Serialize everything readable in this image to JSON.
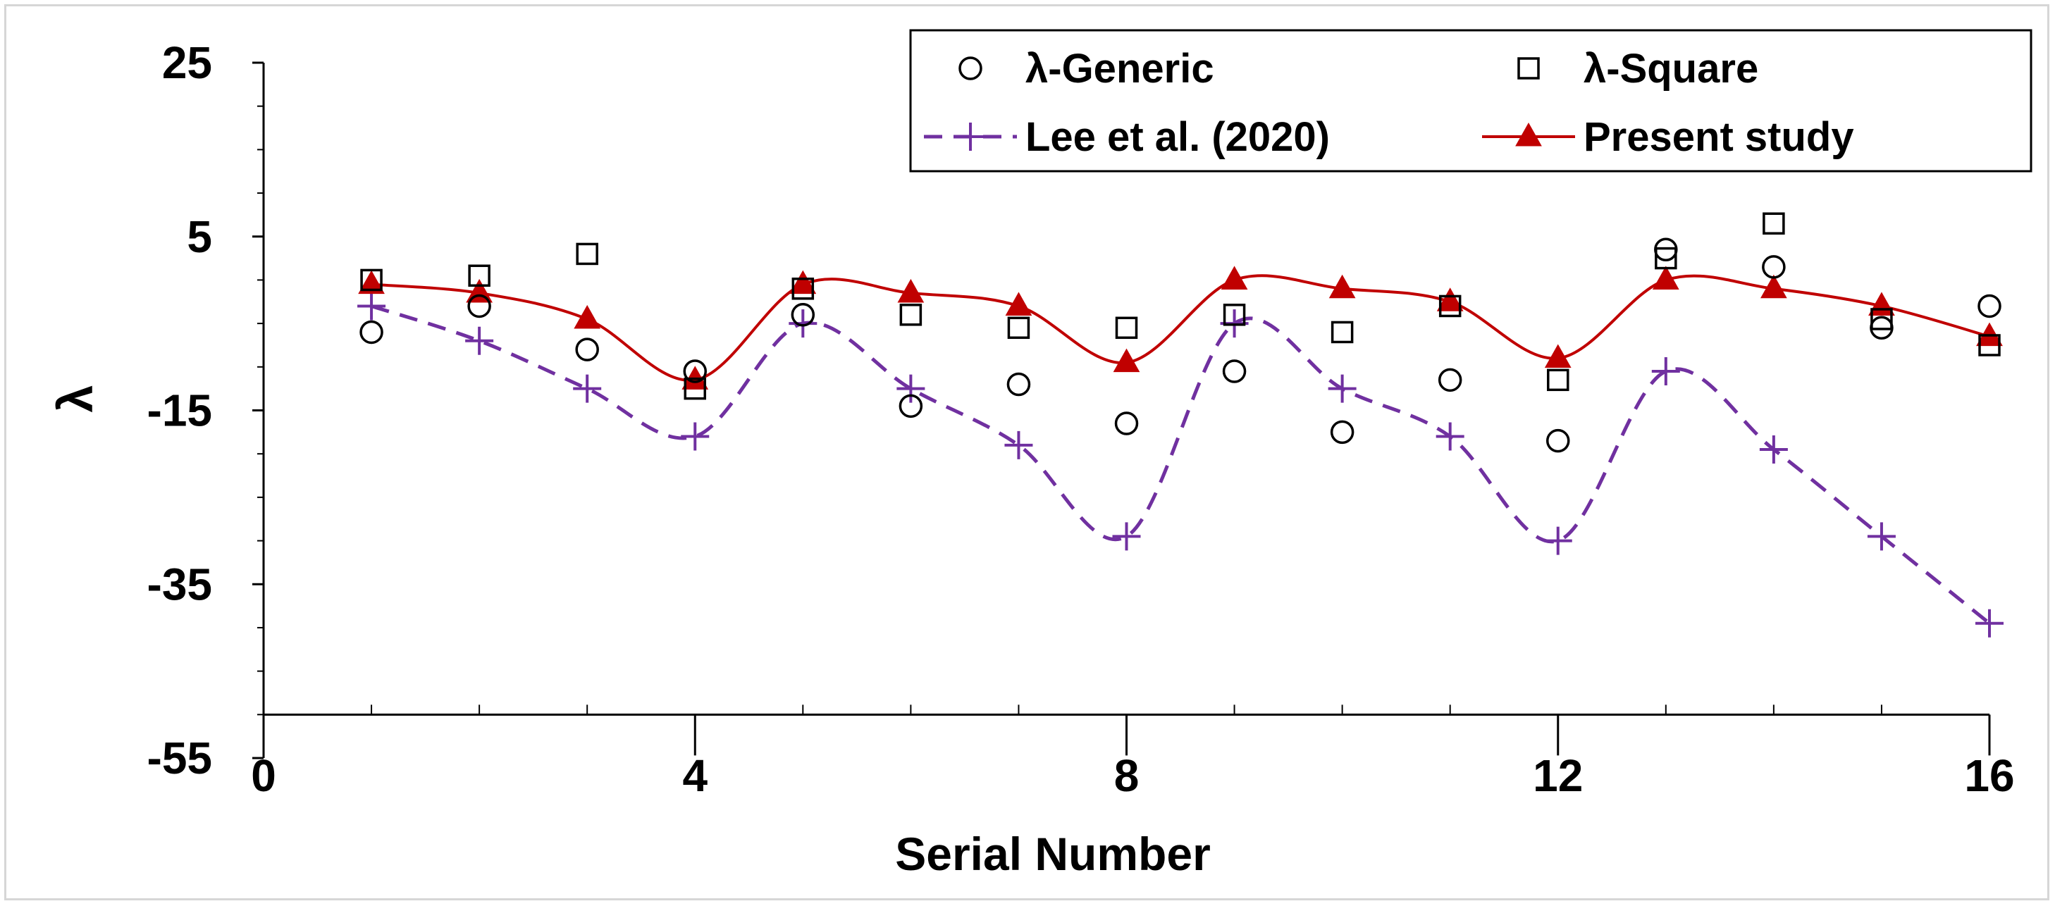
{
  "chart_data": {
    "type": "scatter",
    "title": "",
    "xlabel": "Serial Number",
    "ylabel": "λ",
    "xlim": [
      0,
      16
    ],
    "ylim": [
      -55,
      25
    ],
    "x_axis_crossing_y": -50,
    "xticks": [
      0,
      4,
      8,
      12,
      16
    ],
    "yticks": [
      25,
      5,
      -15,
      -35,
      -55
    ],
    "xtick_labels": [
      "0",
      "4",
      "8",
      "12",
      "16"
    ],
    "ytick_labels": [
      "25",
      "5",
      "-15",
      "-35",
      "-55"
    ],
    "grid": false,
    "legend_position": "top-right",
    "series": [
      {
        "name": "λ-Generic",
        "style": "markers",
        "marker": "circle",
        "color": "#000000",
        "x": [
          1,
          2,
          3,
          4,
          5,
          6,
          7,
          8,
          9,
          10,
          11,
          12,
          13,
          14,
          15,
          16
        ],
        "y": [
          -6,
          -3,
          -8,
          -10.5,
          -4,
          -14.5,
          -12,
          -16.5,
          -10.5,
          -17.5,
          -11.5,
          -18.5,
          3.5,
          1.5,
          -5.5,
          -3
        ]
      },
      {
        "name": "λ-Square",
        "style": "markers",
        "marker": "square",
        "color": "#000000",
        "x": [
          1,
          2,
          3,
          4,
          5,
          6,
          7,
          8,
          9,
          10,
          11,
          12,
          13,
          14,
          15,
          16
        ],
        "y": [
          0,
          0.5,
          3,
          -12.5,
          -1,
          -4,
          -5.5,
          -5.5,
          -4,
          -6,
          -3,
          -11.5,
          2.5,
          6.5,
          -4.5,
          -7.5
        ]
      },
      {
        "name": "Lee et al. (2020)",
        "style": "dashed-line",
        "marker": "plus",
        "color": "#7030a0",
        "x": [
          1,
          2,
          3,
          4,
          5,
          6,
          7,
          8,
          9,
          10,
          11,
          12,
          13,
          14,
          15,
          16
        ],
        "y": [
          -3,
          -7,
          -12.5,
          -18,
          -5,
          -12.5,
          -19,
          -29.5,
          -5,
          -12.5,
          -18,
          -30,
          -10.5,
          -19.5,
          -29.5,
          -39.5
        ]
      },
      {
        "name": "Present study",
        "style": "solid-line",
        "marker": "triangle",
        "color": "#c00000",
        "x": [
          1,
          2,
          3,
          4,
          5,
          6,
          7,
          8,
          9,
          10,
          11,
          12,
          13,
          14,
          15,
          16
        ],
        "y": [
          -0.5,
          -1.5,
          -4.5,
          -11.5,
          -0.5,
          -1.5,
          -3,
          -9.5,
          0,
          -1,
          -2.5,
          -9,
          0,
          -1,
          -3,
          -6.5
        ]
      }
    ]
  }
}
